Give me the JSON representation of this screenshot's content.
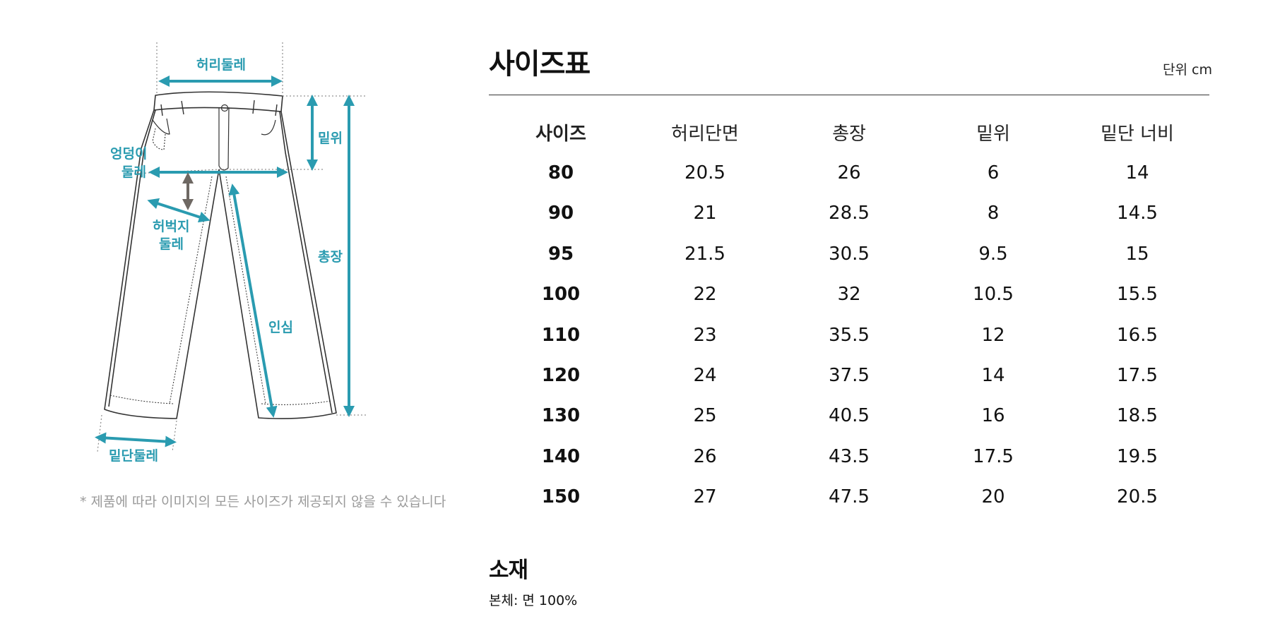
{
  "diagram": {
    "labels": {
      "waist": "허리둘레",
      "rise": "밑위",
      "hip_line1": "엉덩이",
      "hip_line2": "둘레",
      "thigh_line1": "허벅지",
      "thigh_line2": "둘레",
      "total_length": "총장",
      "inseam": "인심",
      "hem": "밑단둘레"
    },
    "accent_color": "#2a9bb0",
    "note": "* 제품에 따라 이미지의 모든 사이즈가 제공되지 않을 수 있습니다"
  },
  "size_table": {
    "title": "사이즈표",
    "unit": "단위 cm",
    "headers": [
      "사이즈",
      "허리단면",
      "총장",
      "밑위",
      "밑단 너비"
    ],
    "rows": [
      [
        "80",
        "20.5",
        "26",
        "6",
        "14"
      ],
      [
        "90",
        "21",
        "28.5",
        "8",
        "14.5"
      ],
      [
        "95",
        "21.5",
        "30.5",
        "9.5",
        "15"
      ],
      [
        "100",
        "22",
        "32",
        "10.5",
        "15.5"
      ],
      [
        "110",
        "23",
        "35.5",
        "12",
        "16.5"
      ],
      [
        "120",
        "24",
        "37.5",
        "14",
        "17.5"
      ],
      [
        "130",
        "25",
        "40.5",
        "16",
        "18.5"
      ],
      [
        "140",
        "26",
        "43.5",
        "17.5",
        "19.5"
      ],
      [
        "150",
        "27",
        "47.5",
        "20",
        "20.5"
      ]
    ]
  },
  "material": {
    "title": "소재",
    "text": "본체: 면 100%"
  }
}
